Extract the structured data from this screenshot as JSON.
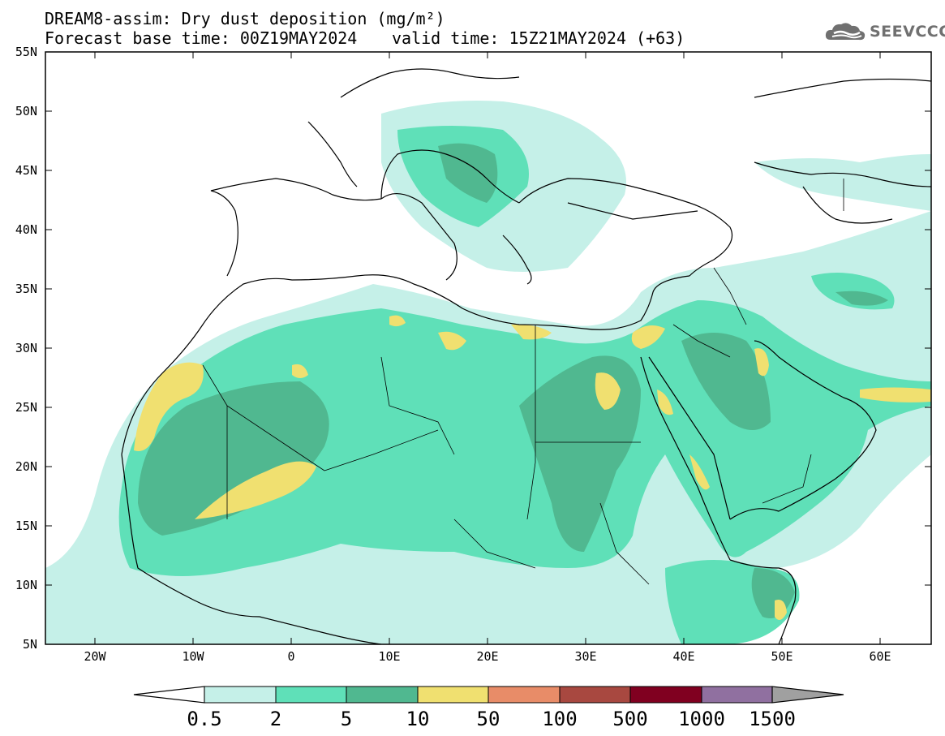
{
  "title": {
    "line1": "DREAM8-assim: Dry dust deposition (mg/m²)",
    "line2_left": "Forecast base time: 00Z19MAY2024",
    "line2_right": "valid time: 15Z21MAY2024 (+63)"
  },
  "logo": {
    "text": "SEEVCCC",
    "icon": "cloud-icon"
  },
  "axes": {
    "lat_labels": [
      "55N",
      "50N",
      "45N",
      "40N",
      "35N",
      "30N",
      "25N",
      "20N",
      "15N",
      "10N",
      "5N"
    ],
    "lon_labels": [
      "20W",
      "10W",
      "0",
      "10E",
      "20E",
      "30E",
      "40E",
      "50E",
      "60E"
    ]
  },
  "colorbar": {
    "labels": [
      "0.5",
      "2",
      "5",
      "10",
      "50",
      "100",
      "500",
      "1000",
      "1500"
    ],
    "colors": [
      "#c5f0e8",
      "#5fe0b8",
      "#50b890",
      "#f0e070",
      "#e88c68",
      "#a84840",
      "#800020",
      "#9070a0"
    ],
    "under_color": "#ffffff",
    "over_color": "#a0a0a0"
  },
  "map": {
    "land_line_color": "#000000",
    "frame_color": "#000000"
  }
}
